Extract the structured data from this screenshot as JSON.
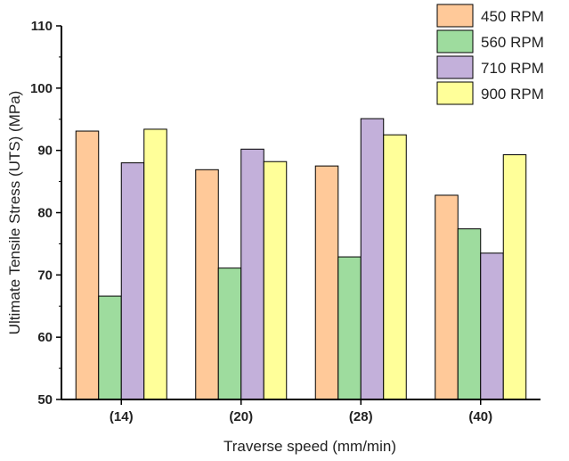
{
  "chart_data": {
    "type": "bar",
    "title": "",
    "xlabel": "Traverse speed (mm/min)",
    "ylabel": "Ultimate Tensile Stress (UTS) (MPa)",
    "categories": [
      "(14)",
      "(20)",
      "(28)",
      "(40)"
    ],
    "ylim": [
      50,
      110
    ],
    "yticks": [
      50,
      60,
      70,
      80,
      90,
      100,
      110
    ],
    "grid": false,
    "legend_position": "top-right",
    "series": [
      {
        "name": "450 RPM",
        "color": "#FFC999",
        "values": [
          93.1,
          86.9,
          87.5,
          82.8
        ]
      },
      {
        "name": "560 RPM",
        "color": "#9EDC9E",
        "values": [
          66.6,
          71.1,
          72.9,
          77.4
        ]
      },
      {
        "name": "710 RPM",
        "color": "#C3B0DA",
        "values": [
          88.0,
          90.2,
          95.1,
          73.5
        ]
      },
      {
        "name": "900 RPM",
        "color": "#FFFF99",
        "values": [
          93.4,
          88.2,
          92.5,
          89.3
        ]
      }
    ]
  }
}
